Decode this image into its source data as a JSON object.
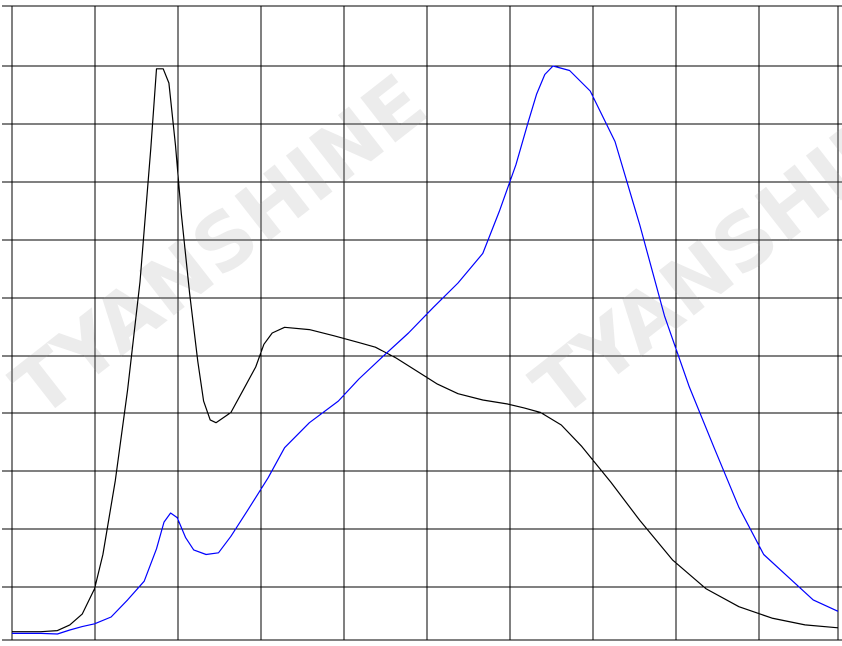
{
  "chart_data": {
    "type": "line",
    "title": "",
    "xlabel": "",
    "ylabel": "",
    "grid": true,
    "xlim": [
      0,
      100
    ],
    "ylim": [
      0,
      100
    ],
    "x_gridlines": 10,
    "y_gridlines": 11,
    "series": [
      {
        "color": "#000000",
        "x": [
          0,
          3.5,
          5.5,
          7.0,
          8.5,
          10.0,
          11.0,
          12.5,
          14.0,
          15.5,
          16.8,
          17.5,
          18.3,
          19.0,
          19.8,
          20.5,
          21.5,
          22.5,
          23.2,
          24.0,
          24.7,
          26.5,
          28.0,
          29.5,
          30.5,
          31.5,
          33.0,
          36.0,
          39.0,
          42.0,
          44.0,
          46.5,
          49.0,
          51.5,
          54.0,
          57.0,
          60.0,
          62.0,
          64.0,
          66.5,
          69.0,
          72.5,
          76.0,
          80.0,
          84.0,
          88.0,
          92.0,
          96.0,
          100.0
        ],
        "y": [
          0.4,
          0.4,
          0.6,
          1.6,
          3.5,
          8.0,
          14.0,
          27.0,
          43.0,
          62.0,
          85.5,
          99.5,
          99.5,
          97.0,
          86.0,
          74.0,
          60.0,
          48.0,
          41.0,
          37.7,
          37.2,
          39.0,
          43.0,
          47.0,
          51.0,
          53.0,
          54.0,
          53.6,
          52.5,
          51.3,
          50.5,
          48.6,
          46.3,
          44.0,
          42.3,
          41.2,
          40.5,
          39.8,
          39.0,
          36.8,
          33.0,
          26.7,
          20.0,
          13.0,
          8.0,
          4.8,
          2.8,
          1.6,
          1.1
        ]
      },
      {
        "color": "#0000ff",
        "x": [
          0,
          3.5,
          5.5,
          7.0,
          8.5,
          10.0,
          12.0,
          14.0,
          16.0,
          17.5,
          18.4,
          19.2,
          20.0,
          21.0,
          22.0,
          23.5,
          25.0,
          26.5,
          28.5,
          31.0,
          33.0,
          36.0,
          39.5,
          42.0,
          45.0,
          48.0,
          51.0,
          54.0,
          57.0,
          59.0,
          61.0,
          62.5,
          63.5,
          64.5,
          65.5,
          67.5,
          70.0,
          73.0,
          76.0,
          79.0,
          82.0,
          85.0,
          88.0,
          91.0,
          94.0,
          97.0,
          100.0
        ],
        "y": [
          0.1,
          0.1,
          0.0,
          0.7,
          1.3,
          1.8,
          3.0,
          6.0,
          9.3,
          15.0,
          19.7,
          21.3,
          20.5,
          17.0,
          14.8,
          14.0,
          14.3,
          17.2,
          21.7,
          27.5,
          32.8,
          37.2,
          41.0,
          44.9,
          49.0,
          53.0,
          57.5,
          61.8,
          67.0,
          74.4,
          82.6,
          90.2,
          95.0,
          98.5,
          100.0,
          99.2,
          95.6,
          86.7,
          72.0,
          56.0,
          43.5,
          32.8,
          22.3,
          14.0,
          10.0,
          6.0,
          4.0
        ]
      }
    ]
  }
}
